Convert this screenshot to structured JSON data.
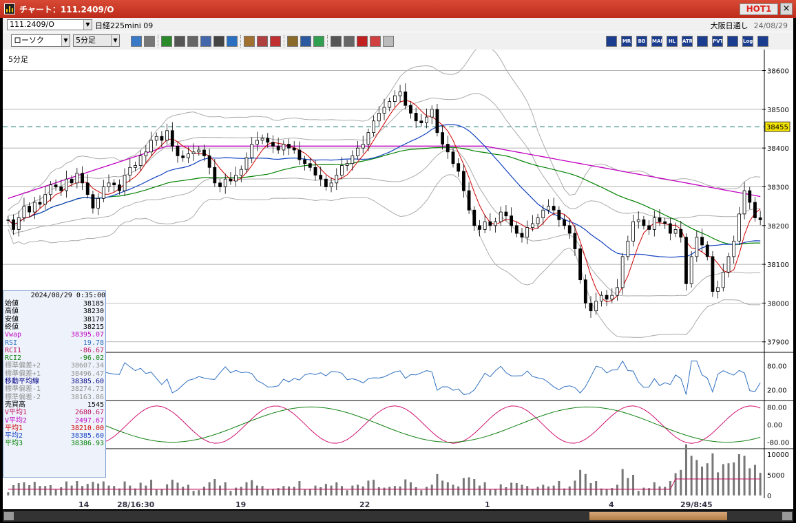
{
  "window": {
    "title": "チャート：111.2409/O",
    "hot_label": "HOT1",
    "close_label": "×"
  },
  "symbol": {
    "code": "111.2409/O",
    "product": "日経225mini 09",
    "exchange": "大阪日通し",
    "date": "24/08/29"
  },
  "toolbar": {
    "chart_type": "ローソク",
    "interval": "5分足",
    "buttons": [
      "magnify",
      "crosshair",
      "trendline",
      "draw",
      "pointer",
      "eraser",
      "note",
      "trash",
      "stock-a",
      "stock-b",
      "all",
      "settings",
      "wrench",
      "palette",
      "export",
      "search",
      "bars",
      "bars2",
      "blank"
    ],
    "indicator_buttons": [
      "candles",
      "MR",
      "BB",
      "MAE",
      "HL",
      "ATR",
      "ichimoku",
      "PVT",
      "box",
      "Log",
      "close"
    ],
    "indicator_labels": [
      "",
      "MR",
      "BB",
      "MAE",
      "HL",
      "ATR",
      "",
      "PVT",
      "",
      "Log",
      ""
    ]
  },
  "chart": {
    "interval_label": "5分足",
    "price_ticks": [
      "38600",
      "38500",
      "38400",
      "38300",
      "38200",
      "38100",
      "38000",
      "37900"
    ],
    "current_price": "38455",
    "rsi_ticks": [
      "80.00",
      "20.00"
    ],
    "rci_ticks": [
      "80.00",
      "0.00",
      "-80.00"
    ],
    "volume_ticks": [
      "10000",
      "5000",
      "0"
    ],
    "x_labels": [
      "14",
      "28/16:30",
      "19",
      "22",
      "1",
      "4",
      "29/8:45"
    ]
  },
  "info": {
    "timestamp": "2024/08/29  0:35:00",
    "rows": [
      {
        "k": "始値",
        "v": "38185",
        "c": "#000000"
      },
      {
        "k": "高値",
        "v": "38230",
        "c": "#000000"
      },
      {
        "k": "安値",
        "v": "38170",
        "c": "#000000"
      },
      {
        "k": "終値",
        "v": "38215",
        "c": "#000000"
      },
      {
        "k": "Vwap",
        "v": "38395.07",
        "c": "#c000c0"
      },
      {
        "k": "RSI",
        "v": "19.78",
        "c": "#3070c0"
      },
      {
        "k": "RCI1",
        "v": "-86.67",
        "c": "#c01060"
      },
      {
        "k": "RCI2",
        "v": "-96.02",
        "c": "#108010"
      },
      {
        "k": "標準偏差+2",
        "v": "38607.34",
        "c": "#909090"
      },
      {
        "k": "標準偏差+1",
        "v": "38496.47",
        "c": "#909090"
      },
      {
        "k": "移動平均線",
        "v": "38385.60",
        "c": "#000080"
      },
      {
        "k": "標準偏差-1",
        "v": "38274.73",
        "c": "#909090"
      },
      {
        "k": "標準偏差-2",
        "v": "38163.86",
        "c": "#909090"
      },
      {
        "k": "売買高",
        "v": "1545",
        "c": "#000000"
      },
      {
        "k": "V平均1",
        "v": "2680.67",
        "c": "#c01060"
      },
      {
        "k": "V平均2",
        "v": "2497.67",
        "c": "#c000c0"
      },
      {
        "k": "平均1",
        "v": "38210.00",
        "c": "#d00000"
      },
      {
        "k": "平均2",
        "v": "38385.60",
        "c": "#1040c0"
      },
      {
        "k": "平均3",
        "v": "38386.93",
        "c": "#008000"
      }
    ]
  },
  "chart_data": {
    "type": "candlestick",
    "price_range": [
      37880,
      38640
    ],
    "current_price": 38455,
    "closes": [
      38215,
      38190,
      38220,
      38250,
      38235,
      38260,
      38255,
      38280,
      38305,
      38300,
      38290,
      38320,
      38310,
      38335,
      38310,
      38280,
      38245,
      38270,
      38300,
      38310,
      38305,
      38290,
      38330,
      38350,
      38355,
      38380,
      38390,
      38420,
      38430,
      38420,
      38445,
      38405,
      38380,
      38375,
      38385,
      38390,
      38395,
      38380,
      38350,
      38310,
      38300,
      38320,
      38315,
      38330,
      38345,
      38375,
      38410,
      38420,
      38425,
      38415,
      38405,
      38395,
      38410,
      38400,
      38395,
      38370,
      38360,
      38350,
      38330,
      38320,
      38300,
      38310,
      38330,
      38355,
      38360,
      38380,
      38400,
      38410,
      38440,
      38470,
      38490,
      38505,
      38520,
      38535,
      38545,
      38510,
      38490,
      38470,
      38465,
      38480,
      38500,
      38440,
      38410,
      38390,
      38360,
      38340,
      38290,
      38240,
      38200,
      38190,
      38210,
      38200,
      38210,
      38235,
      38225,
      38200,
      38180,
      38170,
      38195,
      38205,
      38220,
      38240,
      38250,
      38240,
      38215,
      38200,
      38180,
      38140,
      38060,
      38000,
      37980,
      38005,
      38020,
      38010,
      38020,
      38040,
      38120,
      38160,
      38210,
      38215,
      38200,
      38190,
      38220,
      38210,
      38205,
      38180,
      38190,
      38170,
      38050,
      38120,
      38170,
      38150,
      38120,
      38030,
      38040,
      38080,
      38120,
      38160,
      38230,
      38290,
      38260,
      38220,
      38215
    ],
    "upper_2sigma": [
      38607
    ],
    "mid": [
      38385.6
    ],
    "lower_2sigma": [
      38163.9
    ],
    "vwap": 38395.07,
    "ma1": 38210,
    "ma2": 38385.6,
    "ma3": 38386.93,
    "rsi_last": 19.78,
    "rci1_last": -86.67,
    "rci2_last": -96.02,
    "volume_last": 1545
  }
}
